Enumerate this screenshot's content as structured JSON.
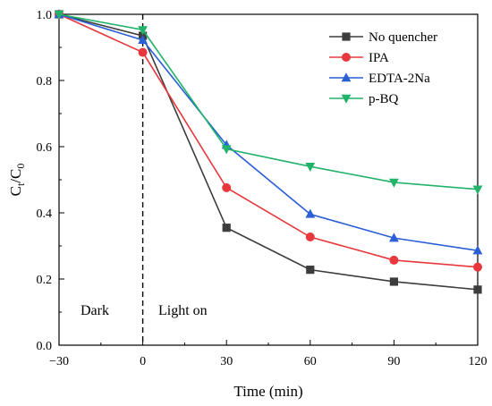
{
  "chart_data": {
    "type": "line",
    "xlabel": "Time (min)",
    "ylabel_main": "C",
    "ylabel_sub1": "t",
    "ylabel_sep": "/C",
    "ylabel_sub2": "0",
    "x": [
      -30,
      0,
      30,
      60,
      90,
      120
    ],
    "xticks": [
      "−30",
      "0",
      "30",
      "60",
      "90",
      "120"
    ],
    "yticks": [
      "0.0",
      "0.2",
      "0.4",
      "0.6",
      "0.8",
      "1.0"
    ],
    "xlim": [
      -30,
      120
    ],
    "ylim": [
      0,
      1.0
    ],
    "grid": false,
    "legend_position": "top-right",
    "divider_x": 0,
    "annotations": {
      "left": "Dark",
      "right": "Light on"
    },
    "series": [
      {
        "name": "No quencher",
        "marker": "square",
        "color": "#3d3d3d",
        "values": [
          1.0,
          0.935,
          0.355,
          0.228,
          0.192,
          0.168
        ]
      },
      {
        "name": "IPA",
        "marker": "circle",
        "color": "#e8383d",
        "values": [
          1.0,
          0.885,
          0.476,
          0.327,
          0.257,
          0.236
        ]
      },
      {
        "name": "EDTA-2Na",
        "marker": "triangle-up",
        "color": "#2a5fd6",
        "values": [
          1.0,
          0.922,
          0.605,
          0.396,
          0.324,
          0.286
        ]
      },
      {
        "name": "p-BQ",
        "marker": "triangle-down",
        "color": "#22b36b",
        "values": [
          1.0,
          0.953,
          0.593,
          0.54,
          0.492,
          0.471
        ]
      }
    ]
  }
}
